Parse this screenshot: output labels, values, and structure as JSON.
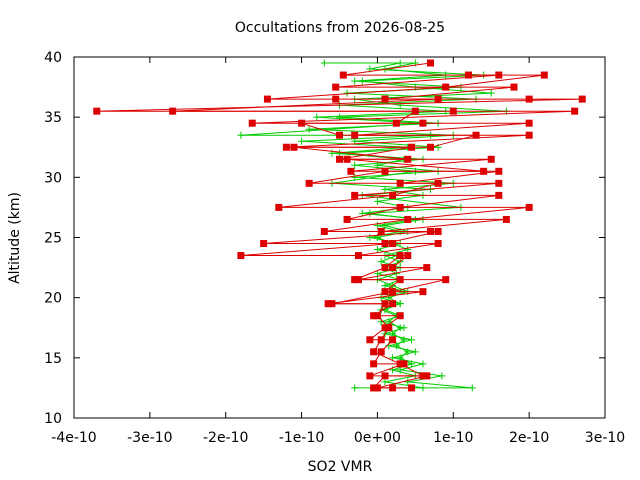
{
  "chart_data": {
    "type": "line",
    "title": "Occultations from 2026-08-25",
    "xlabel": "SO2 VMR",
    "ylabel": "Altitude (km)",
    "xlim": [
      -4e-10,
      3e-10
    ],
    "ylim": [
      10,
      40
    ],
    "x_ticks": [
      -4e-10,
      -3e-10,
      -2e-10,
      -1e-10,
      0,
      1e-10,
      2e-10,
      3e-10
    ],
    "x_tick_labels": [
      "-4e-10",
      "-3e-10",
      "-2e-10",
      "-1e-10",
      "0e+00",
      "1e-10",
      "2e-10",
      "3e-10"
    ],
    "y_ticks": [
      10,
      15,
      20,
      25,
      30,
      35,
      40
    ],
    "y_tick_labels": [
      "10",
      "15",
      "20",
      "25",
      "30",
      "35",
      "40"
    ],
    "grid": false,
    "legend": "none",
    "colors": {
      "red_series": "#dd0000",
      "green_series": "#00cc00"
    },
    "series": [
      {
        "color": "#dd0000",
        "marker": "square",
        "points": [
          [
            1.2e-10,
            38.5
          ],
          [
            2.2e-10,
            38.5
          ],
          [
            9e-11,
            37.5
          ],
          [
            -1.45e-10,
            36.5
          ],
          [
            -5.5e-11,
            36.5
          ],
          [
            8e-11,
            36.5
          ],
          [
            -2.7e-10,
            35.5
          ],
          [
            5e-11,
            35.5
          ],
          [
            2.5e-11,
            34.5
          ],
          [
            -1e-10,
            34.5
          ],
          [
            -5e-11,
            33.5
          ],
          [
            1.3e-10,
            33.5
          ],
          [
            7e-11,
            32.5
          ],
          [
            -1.1e-10,
            32.5
          ],
          [
            4e-11,
            31.5
          ],
          [
            -4e-11,
            31.5
          ],
          [
            1.4e-10,
            30.5
          ],
          [
            1e-11,
            30.5
          ],
          [
            -9e-11,
            29.5
          ],
          [
            8e-11,
            29.5
          ],
          [
            2e-11,
            28.5
          ],
          [
            -1.3e-10,
            27.5
          ],
          [
            2e-10,
            27.5
          ],
          [
            4e-11,
            26.5
          ],
          [
            -7e-11,
            25.5
          ],
          [
            7e-11,
            25.5
          ],
          [
            -1.5e-10,
            24.5
          ],
          [
            2e-11,
            24.5
          ],
          [
            -1.8e-10,
            23.5
          ],
          [
            3e-11,
            23.5
          ],
          [
            1e-11,
            22.5
          ],
          [
            -3e-11,
            21.5
          ],
          [
            9e-11,
            21.5
          ],
          [
            2e-11,
            20.5
          ],
          [
            -6e-11,
            19.5
          ],
          [
            1e-11,
            19.5
          ],
          [
            0.0,
            18.5
          ],
          [
            1.5e-11,
            17.5
          ],
          [
            5e-12,
            16.5
          ],
          [
            -5e-12,
            15.5
          ],
          [
            3e-11,
            14.5
          ],
          [
            6e-11,
            13.5
          ],
          [
            1e-11,
            13.5
          ],
          [
            -5e-12,
            12.5
          ],
          [
            4.5e-11,
            12.5
          ]
        ]
      },
      {
        "color": "#dd0000",
        "marker": "square",
        "points": [
          [
            7e-11,
            39.5
          ],
          [
            -4.5e-11,
            38.5
          ],
          [
            1.6e-10,
            38.5
          ],
          [
            -5.5e-11,
            37.5
          ],
          [
            1.8e-10,
            37.5
          ],
          [
            1e-11,
            36.5
          ],
          [
            2e-10,
            36.5
          ],
          [
            2.7e-10,
            36.5
          ],
          [
            -3.7e-10,
            35.5
          ],
          [
            1e-10,
            35.5
          ],
          [
            2.6e-10,
            35.5
          ],
          [
            -1.65e-10,
            34.5
          ],
          [
            6e-11,
            34.5
          ],
          [
            2e-10,
            34.5
          ],
          [
            -3e-11,
            33.5
          ],
          [
            2e-10,
            33.5
          ],
          [
            -1.2e-10,
            32.5
          ],
          [
            4.5e-11,
            32.5
          ],
          [
            -5e-11,
            31.5
          ],
          [
            1.5e-10,
            31.5
          ],
          [
            -3.5e-11,
            30.5
          ],
          [
            1.6e-10,
            30.5
          ],
          [
            3e-11,
            29.5
          ],
          [
            1.6e-10,
            29.5
          ],
          [
            -3e-11,
            28.5
          ],
          [
            1.6e-10,
            28.5
          ],
          [
            3e-11,
            27.5
          ],
          [
            -4e-11,
            26.5
          ],
          [
            1.7e-10,
            26.5
          ],
          [
            5e-12,
            25.5
          ],
          [
            8e-11,
            25.5
          ],
          [
            1e-11,
            24.5
          ],
          [
            8e-11,
            24.5
          ],
          [
            -2.5e-11,
            23.5
          ],
          [
            4e-11,
            23.5
          ],
          [
            2e-11,
            22.5
          ],
          [
            6.5e-11,
            22.5
          ],
          [
            -2.5e-11,
            21.5
          ],
          [
            3e-11,
            21.5
          ],
          [
            1e-11,
            20.5
          ],
          [
            6e-11,
            20.5
          ],
          [
            -6.5e-11,
            19.5
          ],
          [
            2e-11,
            19.5
          ],
          [
            -5e-12,
            18.5
          ],
          [
            3e-11,
            18.5
          ],
          [
            1e-11,
            17.5
          ],
          [
            -1e-11,
            16.5
          ],
          [
            2e-11,
            16.5
          ],
          [
            5e-12,
            15.5
          ],
          [
            -5e-12,
            14.5
          ],
          [
            3.5e-11,
            14.5
          ],
          [
            -1e-11,
            13.5
          ],
          [
            6.5e-11,
            13.5
          ],
          [
            0.0,
            12.5
          ],
          [
            2e-11,
            12.5
          ]
        ]
      },
      {
        "color": "#00cc00",
        "marker": "cross",
        "points": [
          [
            -7e-11,
            39.5
          ],
          [
            5e-11,
            39.5
          ],
          [
            1e-11,
            39
          ],
          [
            9e-11,
            38.5
          ],
          [
            -3e-11,
            38
          ],
          [
            1.1e-10,
            37.5
          ],
          [
            -4e-11,
            37
          ],
          [
            1.3e-10,
            36.5
          ],
          [
            -5e-11,
            36
          ],
          [
            9e-11,
            35.5
          ],
          [
            -8e-11,
            35
          ],
          [
            6e-11,
            34.5
          ],
          [
            -1.8e-10,
            33.5
          ],
          [
            7e-11,
            33.5
          ],
          [
            -1e-10,
            33
          ],
          [
            4e-11,
            32.5
          ],
          [
            -6e-11,
            32
          ],
          [
            6e-11,
            31.5
          ],
          [
            -3e-11,
            31
          ],
          [
            5e-11,
            30.5
          ],
          [
            -6e-11,
            29.5
          ],
          [
            7e-11,
            29
          ],
          [
            -2e-11,
            28.5
          ],
          [
            1.1e-10,
            27.5
          ],
          [
            -1e-11,
            27
          ],
          [
            5e-11,
            26.5
          ],
          [
            0.0,
            26
          ],
          [
            3e-11,
            25.5
          ],
          [
            -1e-11,
            25
          ],
          [
            3e-11,
            24.5
          ],
          [
            0.0,
            24
          ],
          [
            2.5e-11,
            23.5
          ],
          [
            5e-12,
            23
          ],
          [
            3e-11,
            22.5
          ],
          [
            0.0,
            22
          ],
          [
            3e-11,
            21.5
          ],
          [
            1e-11,
            21
          ],
          [
            3.5e-11,
            20.5
          ],
          [
            5e-12,
            20
          ],
          [
            3e-11,
            19.5
          ],
          [
            1e-11,
            19
          ],
          [
            3e-11,
            18.5
          ],
          [
            5e-12,
            18
          ],
          [
            3.5e-11,
            17.5
          ],
          [
            1e-11,
            17
          ],
          [
            4.5e-11,
            16.5
          ],
          [
            1.5e-11,
            16
          ],
          [
            5e-11,
            15.5
          ],
          [
            2e-11,
            15
          ],
          [
            6e-11,
            14.5
          ],
          [
            3e-11,
            14
          ],
          [
            8.5e-11,
            13.5
          ],
          [
            4e-11,
            13
          ],
          [
            1.25e-10,
            12.5
          ],
          [
            -3e-11,
            12.5
          ]
        ]
      },
      {
        "color": "#00cc00",
        "marker": "cross",
        "points": [
          [
            3e-11,
            39.5
          ],
          [
            -1e-11,
            39
          ],
          [
            1.4e-10,
            38.5
          ],
          [
            -2e-11,
            38
          ],
          [
            5e-11,
            37.5
          ],
          [
            1.5e-10,
            37
          ],
          [
            -3e-11,
            36.5
          ],
          [
            3e-11,
            36
          ],
          [
            1.7e-10,
            35.5
          ],
          [
            -5e-11,
            35
          ],
          [
            8e-11,
            34.5
          ],
          [
            -9e-11,
            34
          ],
          [
            1e-10,
            33.5
          ],
          [
            -3e-11,
            33
          ],
          [
            8e-11,
            32.5
          ],
          [
            -5e-11,
            32
          ],
          [
            3.5e-11,
            31.5
          ],
          [
            0.0,
            31
          ],
          [
            8e-11,
            30.5
          ],
          [
            -3e-11,
            30
          ],
          [
            1e-10,
            29.5
          ],
          [
            1e-11,
            29
          ],
          [
            6e-11,
            28.5
          ],
          [
            0.0,
            28
          ],
          [
            4e-11,
            27.5
          ],
          [
            -2e-11,
            27
          ],
          [
            6e-11,
            26.5
          ],
          [
            1e-11,
            26
          ],
          [
            4e-11,
            25.5
          ],
          [
            0.0,
            25
          ],
          [
            2e-11,
            24.5
          ],
          [
            4e-11,
            24
          ],
          [
            1e-11,
            23.5
          ],
          [
            3e-11,
            23
          ],
          [
            1e-11,
            22.5
          ],
          [
            2.5e-11,
            22
          ],
          [
            0.0,
            21.5
          ],
          [
            2e-11,
            21
          ],
          [
            4e-11,
            20.5
          ],
          [
            1.5e-11,
            20
          ],
          [
            3e-11,
            19.5
          ],
          [
            5e-12,
            19
          ],
          [
            2.5e-11,
            18.5
          ],
          [
            1.5e-11,
            18
          ],
          [
            3e-11,
            17.5
          ],
          [
            2e-11,
            17
          ],
          [
            3.5e-11,
            16.5
          ],
          [
            2.5e-11,
            16
          ],
          [
            4e-11,
            15.5
          ],
          [
            3e-11,
            15
          ],
          [
            4.5e-11,
            14.5
          ],
          [
            2e-11,
            14
          ],
          [
            5e-11,
            13.5
          ],
          [
            1e-11,
            13
          ],
          [
            6e-11,
            12.5
          ]
        ]
      }
    ]
  }
}
